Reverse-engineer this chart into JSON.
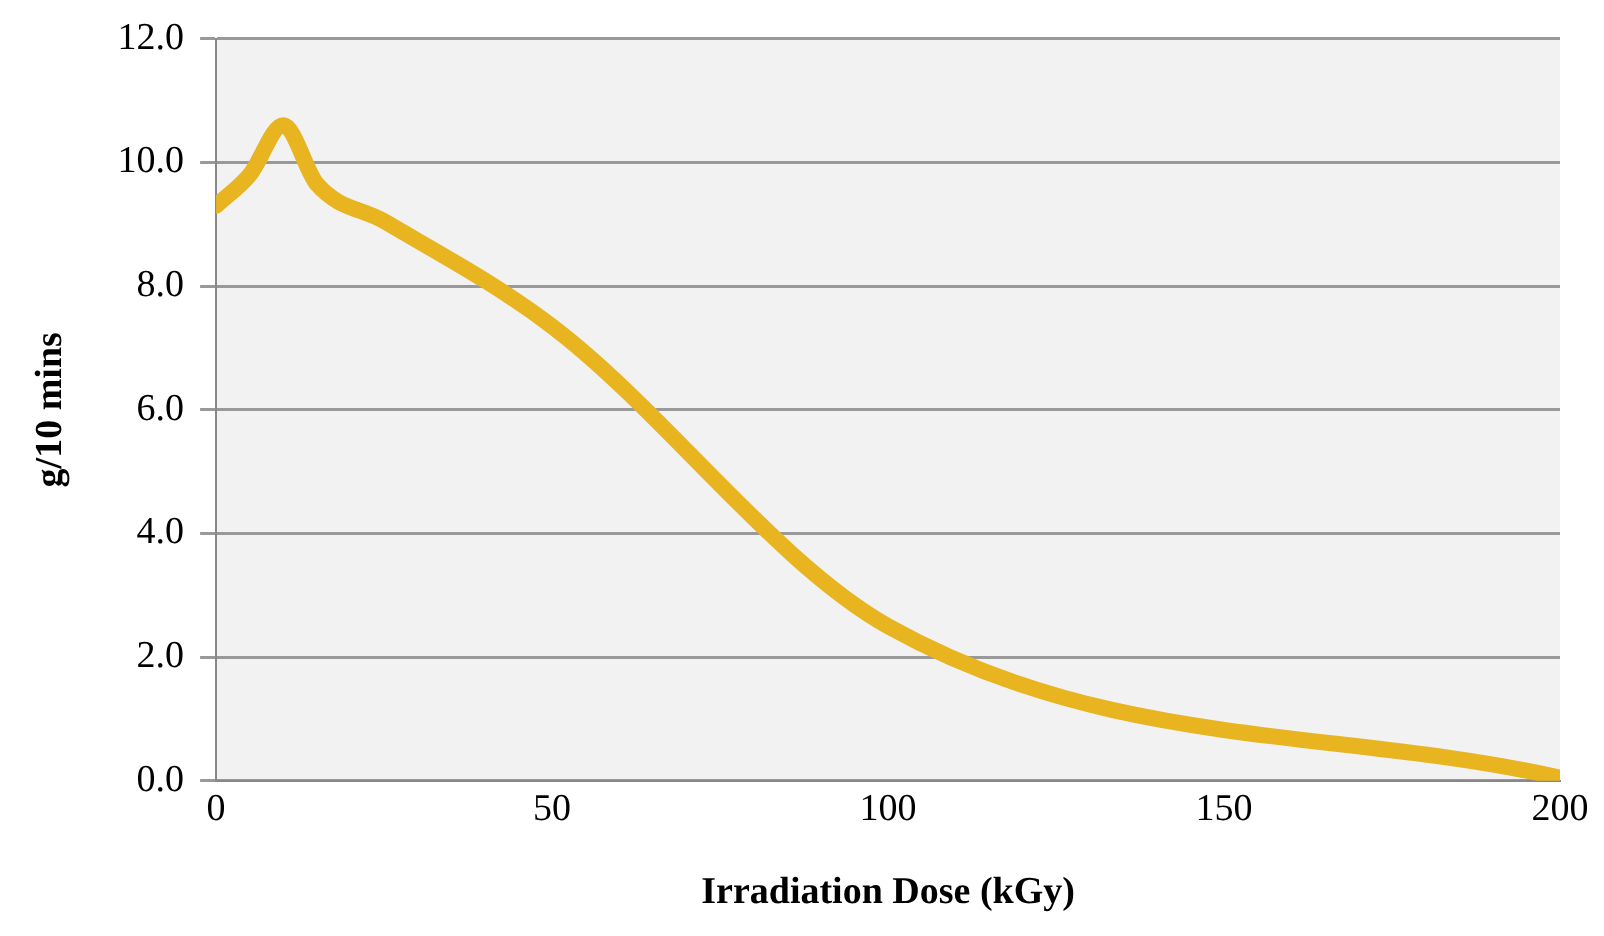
{
  "chart_data": {
    "type": "line",
    "xlabel": "Irradiation Dose (kGy)",
    "ylabel": "g/10 mins",
    "x": [
      0,
      5,
      10,
      15,
      25,
      50,
      100,
      200
    ],
    "series": [
      {
        "color": "#e8b420",
        "values": [
          9.3,
          9.8,
          10.6,
          9.65,
          9.05,
          7.35,
          2.5,
          0.05
        ]
      }
    ],
    "xlim": [
      0,
      200
    ],
    "xticks": [
      0,
      50,
      100,
      150,
      200
    ],
    "ylim": [
      0,
      12
    ],
    "yticks": [
      {
        "value": 0,
        "label": "0.0"
      },
      {
        "value": 2,
        "label": "2.0"
      },
      {
        "value": 4,
        "label": "4.0"
      },
      {
        "value": 6,
        "label": "6.0"
      },
      {
        "value": 8,
        "label": "8.0"
      },
      {
        "value": 10,
        "label": "10.0"
      },
      {
        "value": 12,
        "label": "12.0"
      }
    ],
    "grid": "y",
    "legend": false,
    "marker": "none",
    "line_style": "solid"
  }
}
